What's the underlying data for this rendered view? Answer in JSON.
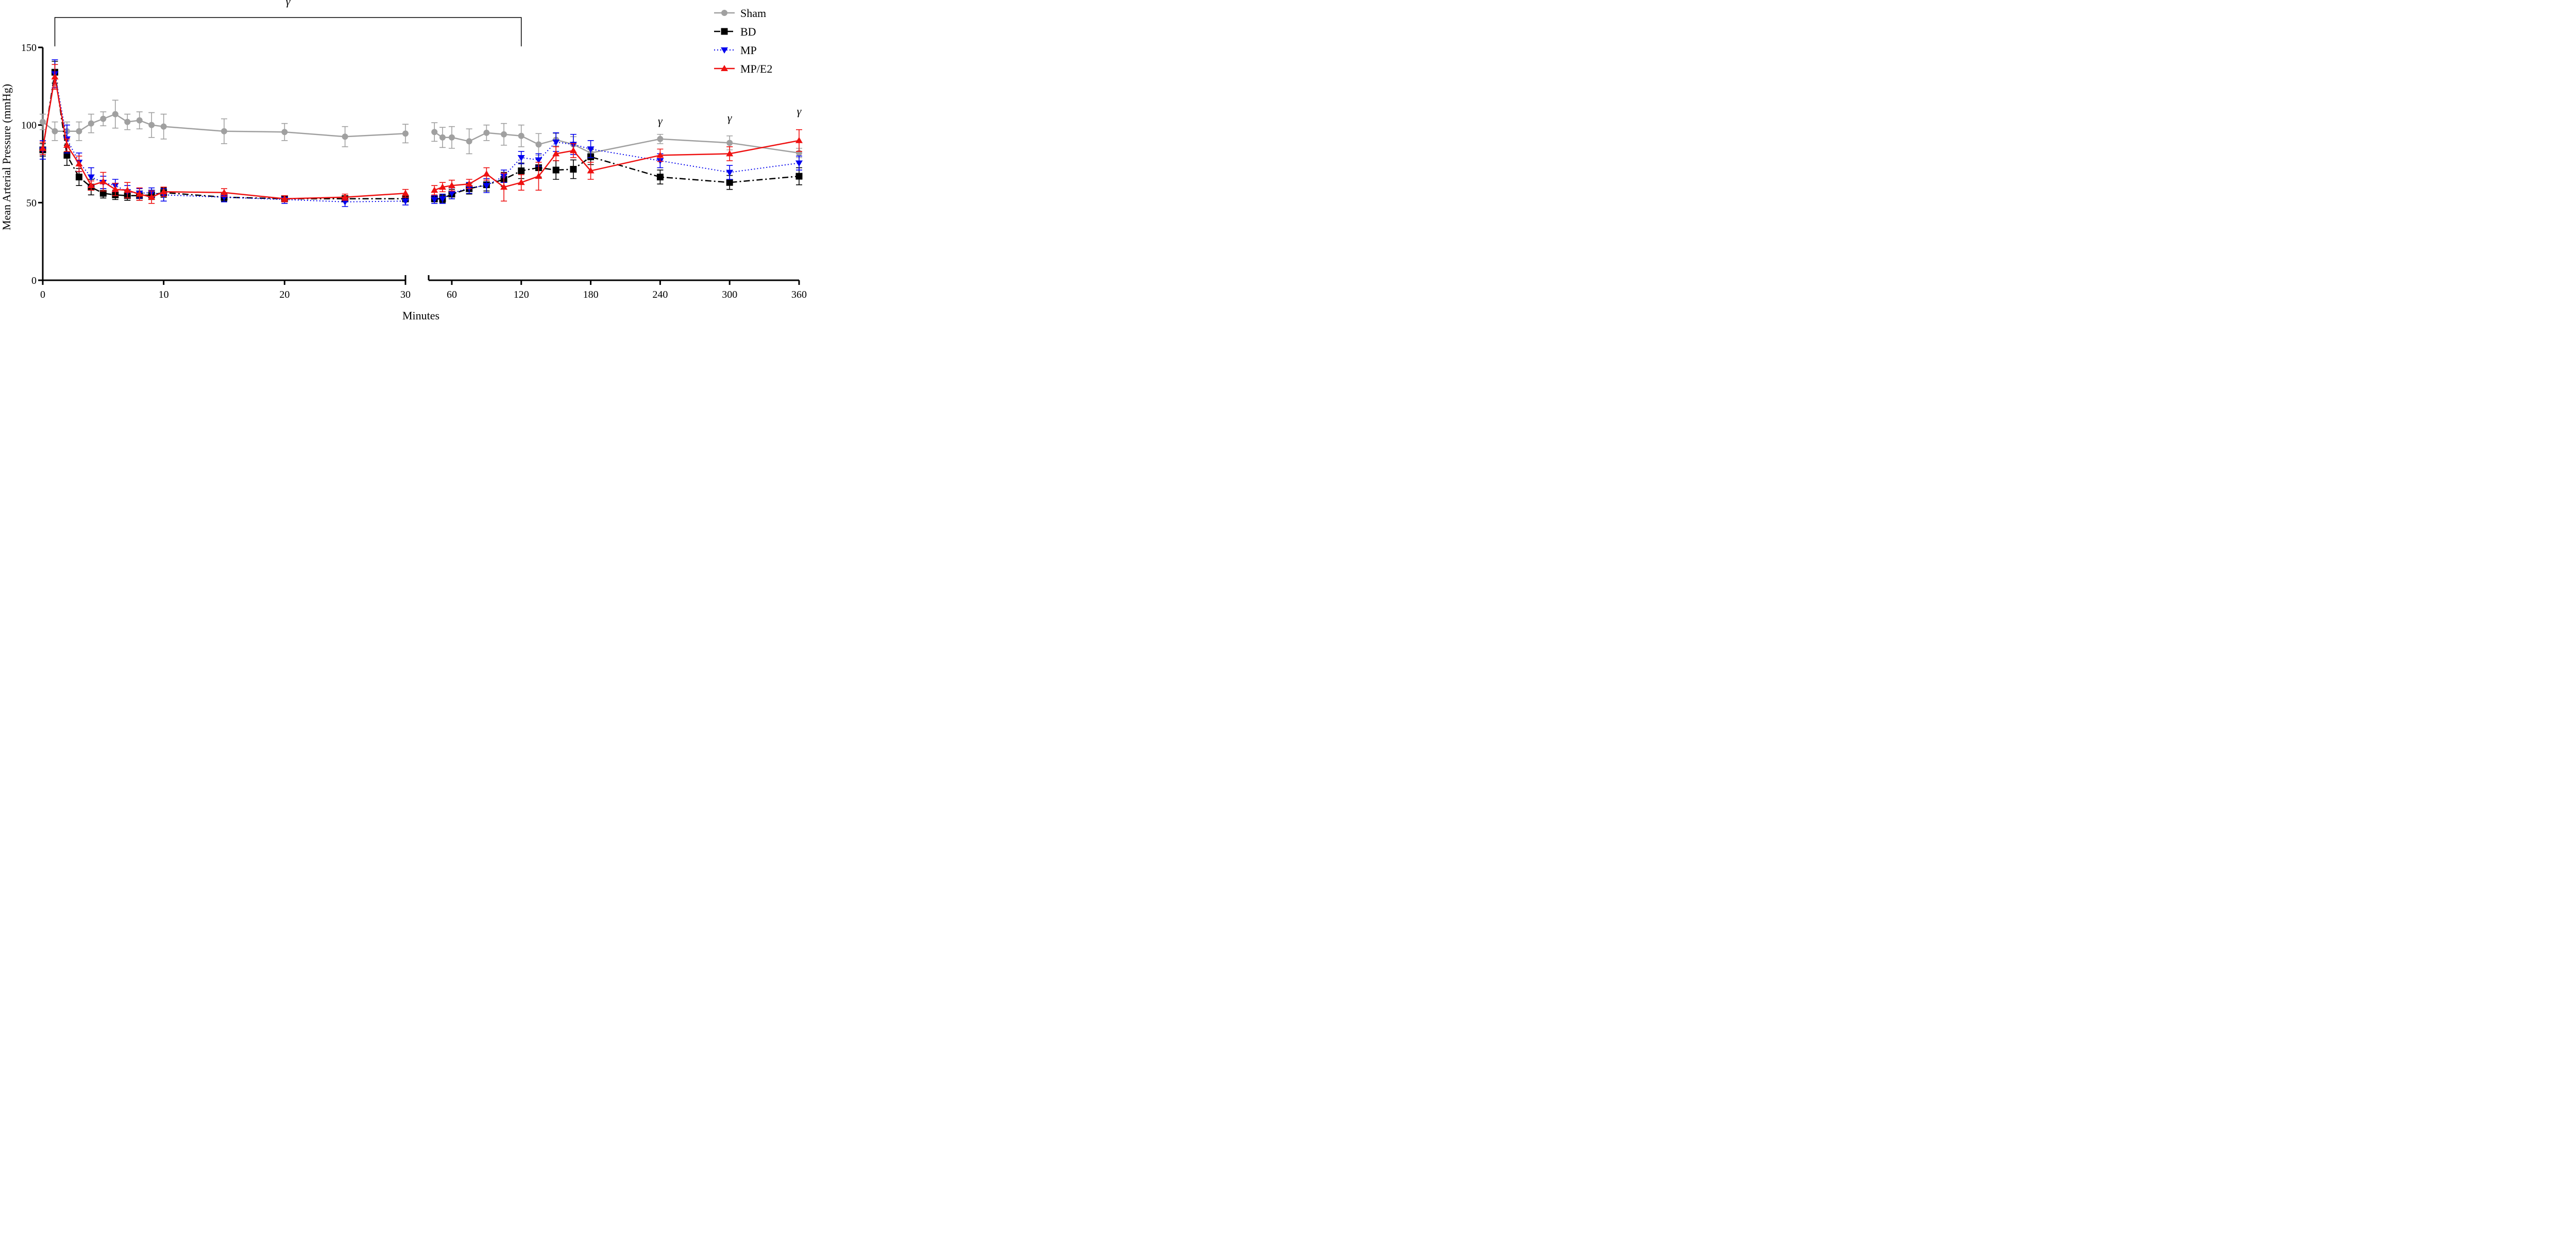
{
  "chart_data": {
    "type": "line",
    "xlabel": "Minutes",
    "ylabel": "Mean Arterial Pressure (mmHg)",
    "ylim": [
      0,
      150
    ],
    "y_ticks": [
      0,
      50,
      100,
      150
    ],
    "broken_x_axis": true,
    "segments": [
      {
        "x_range": [
          0,
          30
        ],
        "ticks": [
          0,
          10,
          20,
          30
        ]
      },
      {
        "x_range": [
          40,
          360
        ],
        "ticks": [
          60,
          120,
          180,
          240,
          300,
          360
        ]
      }
    ],
    "x": [
      0,
      1,
      2,
      3,
      4,
      5,
      6,
      7,
      8,
      9,
      10,
      15,
      20,
      25,
      30,
      45,
      52,
      60,
      75,
      90,
      105,
      120,
      135,
      150,
      165,
      180,
      240,
      300,
      360
    ],
    "legend_position": "top-right",
    "series": [
      {
        "name": "Sham",
        "color": "#a0a0a0",
        "line": "solid",
        "marker": "circle",
        "values": [
          102,
          96,
          96,
          96,
          101,
          104,
          107,
          102,
          103,
          100,
          99,
          96,
          95.5,
          92.5,
          94.5,
          95.5,
          92,
          92,
          89.5,
          95,
          94,
          93,
          87.5,
          90.5,
          87.5,
          82,
          91,
          88.5,
          82
        ],
        "errors": [
          5,
          6,
          6,
          6,
          6,
          4.5,
          9,
          5,
          5.5,
          8,
          8,
          8,
          5.5,
          6.5,
          6,
          6,
          6.5,
          7,
          8,
          5,
          7,
          7,
          7,
          4,
          5,
          4,
          3,
          4.5,
          3
        ]
      },
      {
        "name": "BD",
        "color": "#000000",
        "line": "dashdot",
        "marker": "square",
        "values": [
          84,
          134,
          80.5,
          66.5,
          60,
          56,
          55,
          54.5,
          54.5,
          55,
          56.5,
          53.5,
          52.5,
          52.5,
          52.5,
          52.5,
          52.5,
          55.5,
          59,
          61.5,
          65,
          70.5,
          72.5,
          71,
          71.5,
          79.5,
          66.5,
          63,
          67
        ],
        "errors": [
          4,
          7,
          6.5,
          5.5,
          5,
          3,
          3,
          3,
          3,
          3,
          3,
          2.5,
          2,
          2,
          2,
          2,
          2.5,
          3,
          3.5,
          4,
          4.5,
          5,
          6,
          6,
          6,
          5,
          4.5,
          4.5,
          5.5
        ]
      },
      {
        "name": "MP",
        "color": "#0000ee",
        "line": "dotted",
        "marker": "triangle-down",
        "values": [
          84,
          133,
          91,
          76,
          66.5,
          63,
          61,
          57,
          56,
          56.5,
          55,
          53.5,
          52,
          50.5,
          51,
          52,
          52.5,
          56,
          59.5,
          61,
          67,
          79,
          77.5,
          89,
          87.5,
          84.5,
          77,
          69.5,
          75.5
        ],
        "errors": [
          6,
          9,
          9,
          6,
          6,
          4,
          4,
          4,
          3,
          3,
          4,
          3,
          2.5,
          3,
          2.5,
          2.5,
          3,
          3.5,
          3.5,
          4.5,
          4,
          4,
          4,
          6,
          6.5,
          5.5,
          4.5,
          4.5,
          4.5
        ]
      },
      {
        "name": "MP/E2",
        "color": "#ee1111",
        "line": "solid",
        "marker": "triangle-up",
        "values": [
          85,
          131,
          87,
          75,
          61,
          63.5,
          58.5,
          58,
          55.5,
          53.5,
          57,
          56.5,
          52.5,
          53.5,
          56,
          58,
          60,
          61,
          62,
          68.5,
          60,
          63,
          67,
          81.5,
          83.5,
          70.5,
          80.5,
          81.5,
          90
        ],
        "errors": [
          4,
          8,
          4,
          5,
          3,
          6,
          4,
          5,
          4,
          4,
          3,
          2.5,
          2,
          2,
          2.5,
          3,
          3,
          3.5,
          3,
          4,
          9,
          5,
          9,
          4.5,
          4.5,
          5.5,
          4,
          4.5,
          7
        ]
      }
    ],
    "annotations": [
      {
        "text": "γ",
        "kind": "bracket",
        "x_start": 1,
        "x_end": 120
      },
      {
        "text": "γ",
        "kind": "label",
        "x": 240
      },
      {
        "text": "γ",
        "kind": "label",
        "x": 300
      },
      {
        "text": "γ",
        "kind": "label",
        "x": 360
      }
    ]
  }
}
